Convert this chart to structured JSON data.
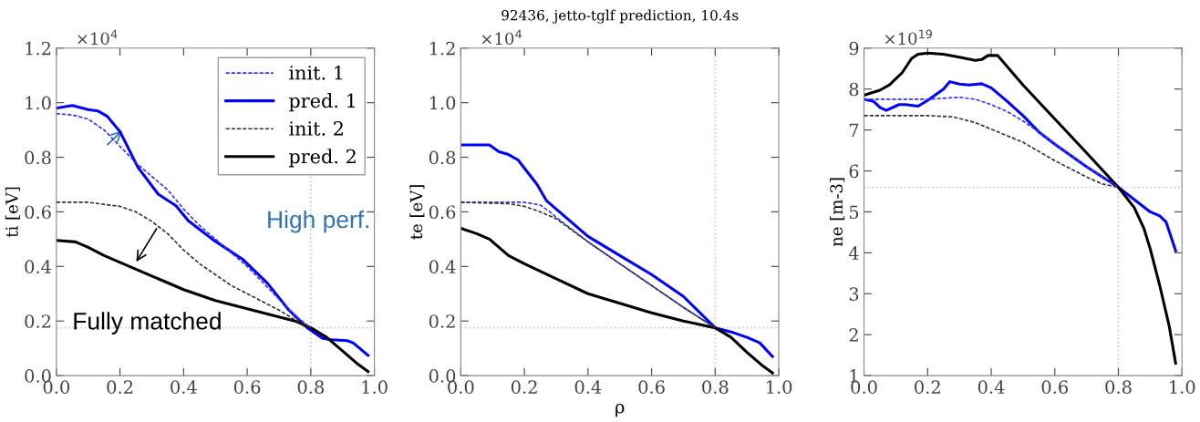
{
  "chart_data": [
    {
      "type": "line",
      "ylabel": "ti [eV]",
      "xlim": [
        0,
        1
      ],
      "ylim": [
        0,
        1.2
      ],
      "xticks": [
        {
          "value": 0,
          "label": "0.0"
        },
        {
          "value": 0.2,
          "label": "0.2"
        },
        {
          "value": 0.4,
          "label": "0.4"
        },
        {
          "value": 0.6,
          "label": "0.6"
        },
        {
          "value": 0.8,
          "label": "0.8"
        },
        {
          "value": 1,
          "label": "1.0"
        }
      ],
      "yticks": [
        {
          "value": 0,
          "label": "0.0"
        },
        {
          "value": 0.2,
          "label": "0.2"
        },
        {
          "value": 0.4,
          "label": "0.4"
        },
        {
          "value": 0.6,
          "label": "0.6"
        },
        {
          "value": 0.8,
          "label": "0.8"
        },
        {
          "value": 1.0,
          "label": "1.0"
        },
        {
          "value": 1.2,
          "label": "1.2"
        }
      ],
      "grid": false,
      "legend": "top right",
      "ref_lines": [
        {
          "axis": "x",
          "value": 0.8,
          "color": "#c8c8c8",
          "line_style": "dotted"
        },
        {
          "axis": "y",
          "value": 0.175,
          "color": "#c8c8c8",
          "line_style": "dotted"
        }
      ],
      "annotations": [
        "×10$^{4}$",
        "High perf.",
        "Fully matched"
      ],
      "series": [
        {
          "name": "init. 1",
          "color": "#3333ff",
          "line_style": "dashed",
          "x": [
            0,
            0.05,
            0.1,
            0.15,
            0.2,
            0.25,
            0.3,
            0.35,
            0.4,
            0.45,
            0.5,
            0.55,
            0.6,
            0.65,
            0.7,
            0.75,
            0.8
          ],
          "values": [
            0.96,
            0.955,
            0.94,
            0.9,
            0.84,
            0.78,
            0.73,
            0.68,
            0.61,
            0.55,
            0.5,
            0.45,
            0.4,
            0.34,
            0.28,
            0.22,
            0.175
          ]
        },
        {
          "name": "pred. 1",
          "color": "#0000ff",
          "line_style": "solid",
          "x": [
            0,
            0.05,
            0.1,
            0.13,
            0.16,
            0.2,
            0.256,
            0.32,
            0.376,
            0.415,
            0.49,
            0.587,
            0.664,
            0.731,
            0.789,
            0.837,
            0.866,
            0.914,
            0.933,
            0.98
          ],
          "values": [
            0.98,
            0.99,
            0.975,
            0.97,
            0.95,
            0.894,
            0.764,
            0.665,
            0.622,
            0.567,
            0.5,
            0.425,
            0.338,
            0.24,
            0.175,
            0.136,
            0.131,
            0.128,
            0.12,
            0.074
          ]
        },
        {
          "name": "init. 2",
          "color": "#333333",
          "line_style": "dashed",
          "x": [
            0,
            0.1,
            0.2,
            0.25,
            0.3,
            0.35,
            0.4,
            0.45,
            0.5,
            0.55,
            0.6,
            0.65,
            0.7,
            0.75,
            0.8
          ],
          "values": [
            0.635,
            0.635,
            0.62,
            0.6,
            0.565,
            0.52,
            0.46,
            0.41,
            0.37,
            0.33,
            0.3,
            0.27,
            0.24,
            0.205,
            0.175
          ]
        },
        {
          "name": "pred. 2",
          "color": "#000000",
          "line_style": "solid",
          "x": [
            0,
            0.06,
            0.1,
            0.15,
            0.2,
            0.25,
            0.3,
            0.35,
            0.4,
            0.45,
            0.5,
            0.55,
            0.6,
            0.65,
            0.7,
            0.75,
            0.8,
            0.85,
            0.9,
            0.95,
            0.98
          ],
          "values": [
            0.495,
            0.49,
            0.47,
            0.44,
            0.415,
            0.39,
            0.365,
            0.34,
            0.315,
            0.295,
            0.275,
            0.26,
            0.245,
            0.23,
            0.215,
            0.2,
            0.175,
            0.14,
            0.09,
            0.04,
            0.015
          ]
        }
      ]
    },
    {
      "type": "line",
      "title": "92436, jetto-tglf prediction, 10.4s",
      "xlabel": "ρ",
      "ylabel": "te [eV]",
      "xlim": [
        0,
        1
      ],
      "ylim": [
        0,
        1.2
      ],
      "xticks": [
        {
          "value": 0,
          "label": "0.0"
        },
        {
          "value": 0.2,
          "label": "0.2"
        },
        {
          "value": 0.4,
          "label": "0.4"
        },
        {
          "value": 0.6,
          "label": "0.6"
        },
        {
          "value": 0.8,
          "label": "0.8"
        },
        {
          "value": 1,
          "label": "1.0"
        }
      ],
      "yticks": [
        {
          "value": 0,
          "label": "0.0"
        },
        {
          "value": 0.2,
          "label": "0.2"
        },
        {
          "value": 0.4,
          "label": "0.4"
        },
        {
          "value": 0.6,
          "label": "0.6"
        },
        {
          "value": 0.8,
          "label": "0.8"
        },
        {
          "value": 1.0,
          "label": "1.0"
        },
        {
          "value": 1.2,
          "label": "1.2"
        }
      ],
      "grid": false,
      "legend": false,
      "ref_lines": [
        {
          "axis": "x",
          "value": 0.8,
          "color": "#c8c8c8",
          "line_style": "dotted"
        },
        {
          "axis": "y",
          "value": 0.175,
          "color": "#c8c8c8",
          "line_style": "dotted"
        }
      ],
      "annotations": [
        "×10$^{4}$"
      ],
      "series": [
        {
          "color": "#3333ff",
          "line_style": "dashed",
          "x": [
            0,
            0.2,
            0.25,
            0.28,
            0.3,
            0.4,
            0.5,
            0.6,
            0.7,
            0.8
          ],
          "values": [
            0.635,
            0.635,
            0.625,
            0.6,
            0.58,
            0.49,
            0.41,
            0.33,
            0.25,
            0.175
          ]
        },
        {
          "color": "#0000ff",
          "line_style": "solid",
          "x": [
            0,
            0.09,
            0.12,
            0.15,
            0.18,
            0.2,
            0.24,
            0.27,
            0.3,
            0.35,
            0.4,
            0.5,
            0.6,
            0.7,
            0.8,
            0.85,
            0.9,
            0.94,
            0.98
          ],
          "values": [
            0.845,
            0.845,
            0.82,
            0.81,
            0.79,
            0.76,
            0.7,
            0.64,
            0.61,
            0.56,
            0.51,
            0.44,
            0.37,
            0.29,
            0.175,
            0.16,
            0.14,
            0.12,
            0.07
          ]
        },
        {
          "color": "#333333",
          "line_style": "dashed",
          "x": [
            0,
            0.15,
            0.2,
            0.25,
            0.3,
            0.4,
            0.5,
            0.6,
            0.7,
            0.8
          ],
          "values": [
            0.635,
            0.63,
            0.62,
            0.6,
            0.575,
            0.49,
            0.41,
            0.33,
            0.25,
            0.175
          ]
        },
        {
          "color": "#000000",
          "line_style": "solid",
          "x": [
            0,
            0.05,
            0.09,
            0.12,
            0.15,
            0.2,
            0.3,
            0.4,
            0.5,
            0.6,
            0.7,
            0.8,
            0.85,
            0.9,
            0.95,
            0.98
          ],
          "values": [
            0.54,
            0.52,
            0.5,
            0.47,
            0.44,
            0.41,
            0.355,
            0.3,
            0.265,
            0.23,
            0.2,
            0.175,
            0.14,
            0.085,
            0.035,
            0.01
          ]
        }
      ]
    },
    {
      "type": "line",
      "ylabel": "ne [m-3]",
      "xlim": [
        0,
        1
      ],
      "ylim": [
        1,
        9
      ],
      "xticks": [
        {
          "value": 0,
          "label": "0.0"
        },
        {
          "value": 0.2,
          "label": "0.2"
        },
        {
          "value": 0.4,
          "label": "0.4"
        },
        {
          "value": 0.6,
          "label": "0.6"
        },
        {
          "value": 0.8,
          "label": "0.8"
        },
        {
          "value": 1,
          "label": "1.0"
        }
      ],
      "yticks": [
        1,
        2,
        3,
        4,
        5,
        6,
        7,
        8,
        9
      ],
      "grid": false,
      "legend": false,
      "ref_lines": [
        {
          "axis": "x",
          "value": 0.8,
          "color": "#c8c8c8",
          "line_style": "dotted"
        },
        {
          "axis": "y",
          "value": 5.6,
          "color": "#c8c8c8",
          "line_style": "dotted"
        }
      ],
      "annotations": [
        "×10$^{19}$"
      ],
      "series": [
        {
          "color": "#3333ff",
          "line_style": "dashed",
          "x": [
            0,
            0.2,
            0.3,
            0.35,
            0.4,
            0.45,
            0.5,
            0.55,
            0.6,
            0.7,
            0.8
          ],
          "values": [
            7.75,
            7.75,
            7.8,
            7.75,
            7.62,
            7.45,
            7.22,
            6.95,
            6.65,
            6.1,
            5.6
          ]
        },
        {
          "color": "#0000ff",
          "line_style": "solid",
          "x": [
            0,
            0.03,
            0.05,
            0.07,
            0.11,
            0.13,
            0.17,
            0.2,
            0.25,
            0.27,
            0.3,
            0.33,
            0.37,
            0.4,
            0.45,
            0.5,
            0.55,
            0.6,
            0.7,
            0.8,
            0.85,
            0.9,
            0.93,
            0.95,
            0.98
          ],
          "values": [
            7.75,
            7.7,
            7.55,
            7.48,
            7.62,
            7.62,
            7.58,
            7.72,
            8.0,
            8.18,
            8.12,
            8.1,
            8.13,
            8.03,
            7.7,
            7.35,
            6.95,
            6.65,
            6.1,
            5.6,
            5.3,
            5.0,
            4.9,
            4.75,
            4.05
          ]
        },
        {
          "color": "#333333",
          "line_style": "dashed",
          "x": [
            0,
            0.2,
            0.28,
            0.35,
            0.4,
            0.5,
            0.6,
            0.7,
            0.75,
            0.8
          ],
          "values": [
            7.35,
            7.35,
            7.32,
            7.18,
            7.02,
            6.7,
            6.25,
            5.85,
            5.68,
            5.6
          ]
        },
        {
          "color": "#000000",
          "line_style": "solid",
          "x": [
            0,
            0.05,
            0.08,
            0.12,
            0.15,
            0.17,
            0.2,
            0.25,
            0.3,
            0.35,
            0.37,
            0.39,
            0.42,
            0.5,
            0.6,
            0.7,
            0.8,
            0.85,
            0.88,
            0.9,
            0.93,
            0.96,
            0.98
          ],
          "values": [
            7.85,
            7.97,
            8.1,
            8.4,
            8.75,
            8.85,
            8.88,
            8.85,
            8.78,
            8.7,
            8.72,
            8.82,
            8.82,
            8.1,
            7.27,
            6.44,
            5.6,
            5.1,
            4.6,
            4.1,
            3.2,
            2.2,
            1.3
          ]
        }
      ]
    }
  ]
}
